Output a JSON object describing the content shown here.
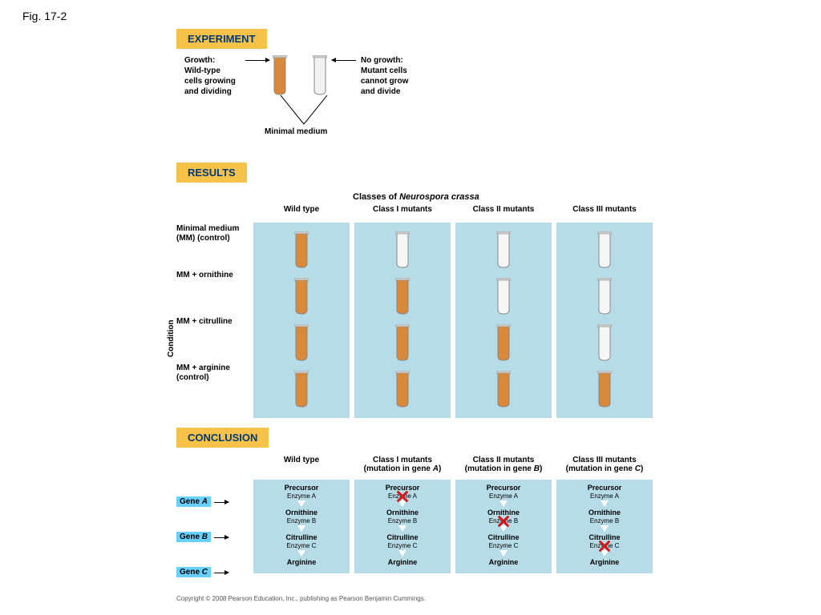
{
  "figure_label": "Fig. 17-2",
  "sections": {
    "experiment": "EXPERIMENT",
    "results": "RESULTS",
    "conclusion": "CONCLUSION"
  },
  "experiment": {
    "growth_label": "Growth:\nWild-type\ncells growing\nand dividing",
    "nogrowth_label": "No growth:\nMutant cells\ncannot grow\nand divide",
    "minimal": "Minimal medium",
    "tube_growth_color": "#d88a3a",
    "tube_nogrowth_color": "#f2f2f2"
  },
  "results": {
    "subtitle": "Classes  of Neurospora  crassa",
    "axis_label": "Condition",
    "row_labels": [
      "Minimal medium (MM) (control)",
      "MM + ornithine",
      "MM + citrulline",
      "MM + arginine (control)"
    ],
    "columns": [
      {
        "title": "Wild type",
        "growth": [
          true,
          true,
          true,
          true
        ]
      },
      {
        "title": "Class I mutants",
        "growth": [
          false,
          true,
          true,
          true
        ]
      },
      {
        "title": "Class II mutants",
        "growth": [
          false,
          false,
          true,
          true
        ]
      },
      {
        "title": "Class III mutants",
        "growth": [
          false,
          false,
          false,
          true
        ]
      }
    ],
    "panel_bg": "#b6dce8",
    "growth_color": "#d88a3a",
    "nogrowth_color": "#f6f6f6"
  },
  "conclusion": {
    "genes": [
      "Gene A",
      "Gene B",
      "Gene C"
    ],
    "metabolites": [
      "Precursor",
      "Ornithine",
      "Citrulline",
      "Arginine"
    ],
    "enzymes": [
      "Enzyme A",
      "Enzyme B",
      "Enzyme C"
    ],
    "columns": [
      {
        "title": "Wild type",
        "blocked": null
      },
      {
        "title": "Class I mutants (mutation in gene A)",
        "blocked": 0
      },
      {
        "title": "Class II mutants (mutation in gene B)",
        "blocked": 1
      },
      {
        "title": "Class III mutants (mutation in gene C)",
        "blocked": 2
      }
    ],
    "panel_bg": "#b6dce8",
    "x_color": "#d3191c",
    "gene_tag_bg": "#66d0ff"
  },
  "copyright": "Copyright © 2008 Pearson Education, Inc., publishing as Pearson Benjamin Cummings."
}
